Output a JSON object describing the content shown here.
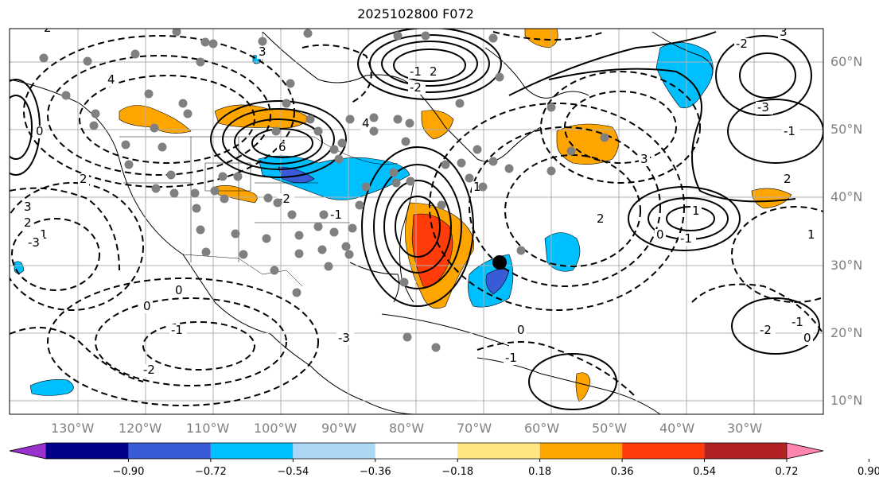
{
  "title": "2025102800 F072",
  "map": {
    "lon_labels": [
      "130°W",
      "120°W",
      "110°W",
      "100°W",
      "90°W",
      "80°W",
      "70°W",
      "60°W",
      "50°W",
      "40°W",
      "30°W"
    ],
    "lat_labels": [
      "60°N",
      "50°N",
      "40°N",
      "30°N",
      "20°N",
      "10°N"
    ],
    "contour_labels": [
      "2",
      "3",
      "4",
      "6",
      "4",
      "2",
      "0",
      "2",
      "3",
      "2",
      "1",
      "0",
      "-1",
      "-2",
      "-3",
      "-2",
      "-1",
      "0",
      "-1",
      "-2",
      "-3",
      "-1",
      "0",
      "1",
      "2",
      "3",
      "1",
      "0",
      "-1",
      "-2",
      "-1",
      "0",
      "1",
      "2",
      "3",
      "-2",
      "-3",
      "-1"
    ],
    "line_color": "#000000",
    "grid_color": "#b0b0b0"
  },
  "colorbar": {
    "ticks": [
      "−0.90",
      "−0.72",
      "−0.54",
      "−0.36",
      "−0.18",
      "0.18",
      "0.36",
      "0.54",
      "0.72",
      "0.90"
    ],
    "colors": [
      "#9932cc",
      "#00008b",
      "#3a5bd6",
      "#00bfff",
      "#add8f5",
      "#ffffff",
      "#ffe680",
      "#ffa500",
      "#ff3c0a",
      "#b22222",
      "#ff85b0"
    ],
    "units": ""
  },
  "stations_color": "#808080",
  "marker_color": "#000000"
}
